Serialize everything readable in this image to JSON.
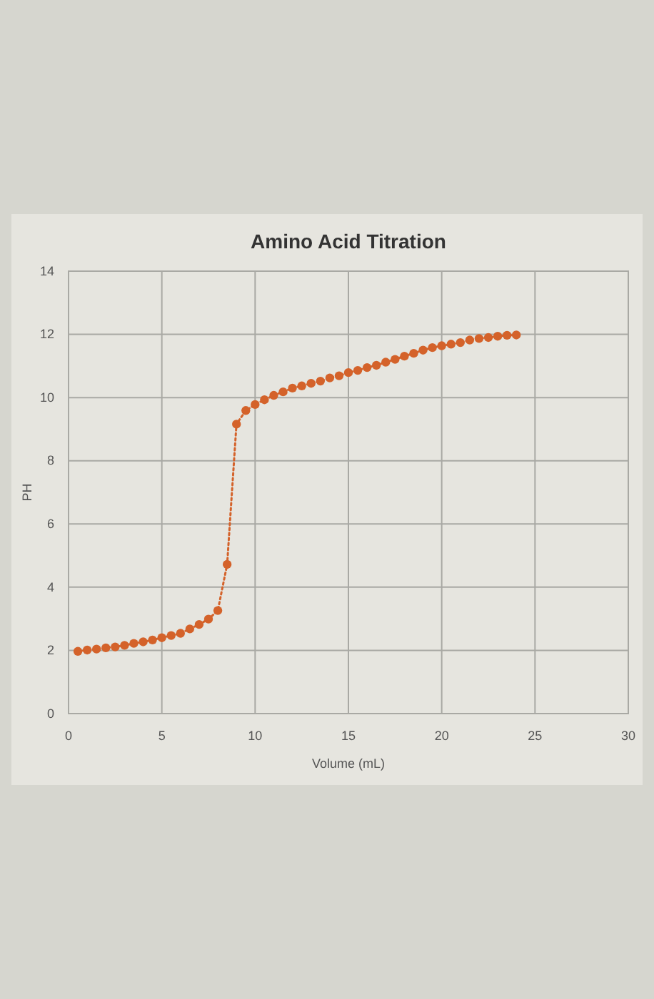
{
  "chart_data": {
    "type": "line",
    "title": "Amino Acid Titration",
    "xlabel": "Volume (mL)",
    "ylabel": "PH",
    "x": [
      0.5,
      1,
      1.5,
      2,
      2.5,
      3,
      3.5,
      4,
      4.5,
      5,
      5.5,
      6,
      6.5,
      7,
      7.5,
      8,
      8.5,
      9,
      9.5,
      10,
      10.5,
      11,
      11.5,
      12,
      12.5,
      13,
      13.5,
      14,
      14.5,
      15,
      15.5,
      16,
      16.5,
      17,
      17.5,
      18,
      18.5,
      19,
      19.5,
      20,
      20.5,
      21,
      21.5,
      22,
      22.5,
      23,
      23.5,
      24
    ],
    "series": [
      {
        "color": "#d4622a",
        "values": [
          1.97,
          2.01,
          2.04,
          2.08,
          2.11,
          2.16,
          2.22,
          2.27,
          2.33,
          2.4,
          2.47,
          2.54,
          2.68,
          2.82,
          2.99,
          3.26,
          4.72,
          9.16,
          9.59,
          9.78,
          9.93,
          10.07,
          10.18,
          10.3,
          10.37,
          10.45,
          10.52,
          10.62,
          10.69,
          10.79,
          10.86,
          10.95,
          11.02,
          11.12,
          11.21,
          11.31,
          11.4,
          11.5,
          11.58,
          11.64,
          11.69,
          11.74,
          11.82,
          11.87,
          11.9,
          11.94,
          11.97,
          11.98
        ]
      }
    ],
    "xlim": [
      0,
      30
    ],
    "xticks": [
      0,
      5,
      10,
      15,
      20,
      25,
      30
    ],
    "ylim": [
      0,
      14
    ],
    "yticks": [
      0,
      2,
      4,
      6,
      8,
      10,
      12,
      14
    ],
    "grid": true,
    "marker": "circle",
    "line_style": "dotted"
  }
}
